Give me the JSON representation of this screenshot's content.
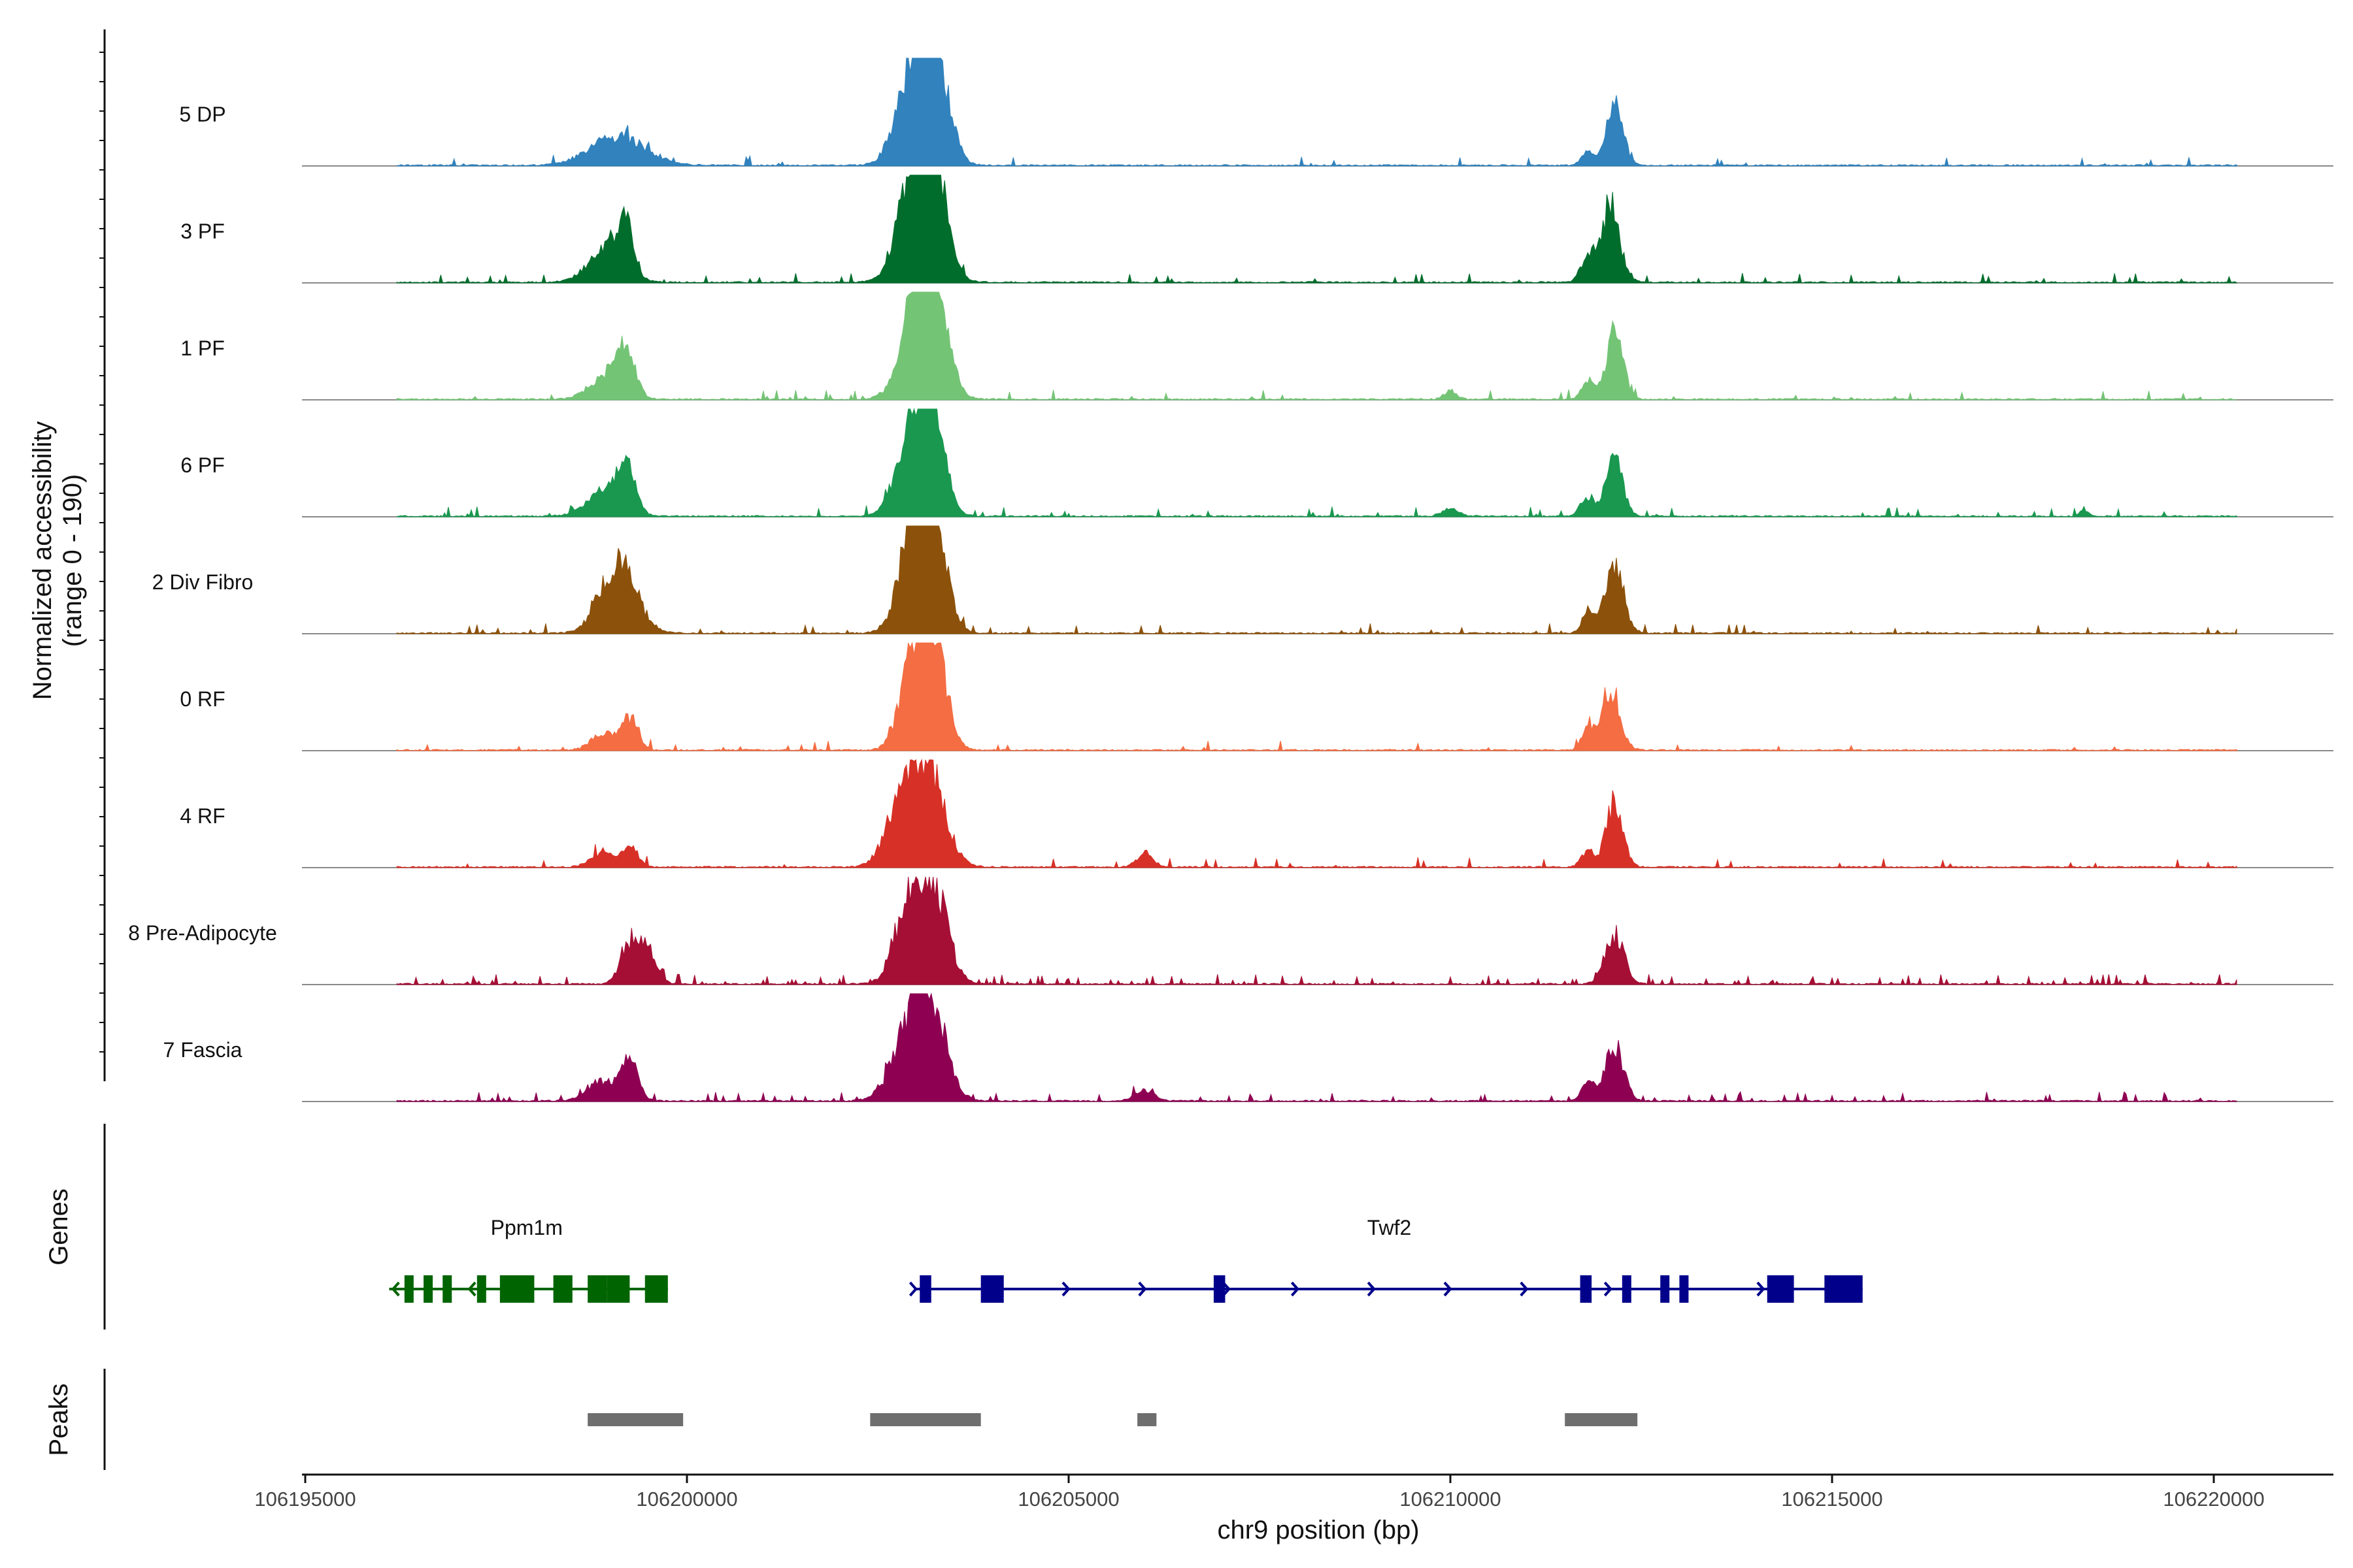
{
  "chart_data": {
    "type": "area",
    "title": "",
    "ylabel": "Normalized accessibility",
    "ylabel_range": "(range 0 - 190)",
    "ylim": [
      0,
      190
    ],
    "xlabel": "chr9 position (bp)",
    "xlim": [
      106195000,
      106221500
    ],
    "xticks": [
      106195000,
      106200000,
      106205000,
      106210000,
      106215000,
      106220000
    ],
    "xtick_labels": [
      "106195000",
      "106200000",
      "106205000",
      "106210000",
      "106215000",
      "106220000"
    ],
    "signal_range": [
      106196200,
      106220300
    ],
    "tracks": [
      {
        "name": "5 DP",
        "color": "#3182bd",
        "peaks": [
          [
            106199100,
            55,
            350
          ],
          [
            106203000,
            180,
            220
          ],
          [
            106203250,
            150,
            180
          ],
          [
            106212150,
            110,
            110
          ],
          [
            106211800,
            25,
            80
          ]
        ],
        "noise": 0.03
      },
      {
        "name": "3 PF",
        "color": "#006d2c",
        "peaks": [
          [
            106198950,
            60,
            230
          ],
          [
            106199200,
            85,
            90
          ],
          [
            106203000,
            180,
            220
          ],
          [
            106203200,
            165,
            190
          ],
          [
            106212100,
            135,
            120
          ],
          [
            106211800,
            45,
            90
          ]
        ],
        "noise": 0.04
      },
      {
        "name": "1 PF",
        "color": "#74c476",
        "peaks": [
          [
            106198950,
            40,
            220
          ],
          [
            106199200,
            75,
            120
          ],
          [
            106203000,
            160,
            200
          ],
          [
            106203250,
            150,
            180
          ],
          [
            106212150,
            120,
            110
          ],
          [
            106211800,
            35,
            80
          ],
          [
            106210000,
            15,
            80
          ]
        ],
        "noise": 0.04
      },
      {
        "name": "6 PF",
        "color": "#1a9850",
        "peaks": [
          [
            106198900,
            45,
            220
          ],
          [
            106199200,
            82,
            120
          ],
          [
            106203000,
            155,
            220
          ],
          [
            106203200,
            145,
            160
          ],
          [
            106212150,
            100,
            110
          ],
          [
            106211800,
            35,
            90
          ],
          [
            106210000,
            15,
            100
          ],
          [
            106218300,
            10,
            60
          ]
        ],
        "noise": 0.05
      },
      {
        "name": "2 Div Fibro",
        "color": "#8c510a",
        "peaks": [
          [
            106199100,
            125,
            230
          ],
          [
            106203000,
            180,
            200
          ],
          [
            106203200,
            185,
            180
          ],
          [
            106212150,
            120,
            120
          ],
          [
            106211800,
            35,
            80
          ]
        ],
        "noise": 0.05
      },
      {
        "name": "0 RF",
        "color": "#f46d43",
        "peaks": [
          [
            106198900,
            30,
            150
          ],
          [
            106199250,
            55,
            110
          ],
          [
            106203000,
            175,
            180
          ],
          [
            106203250,
            155,
            160
          ],
          [
            106212100,
            110,
            120
          ],
          [
            106211800,
            35,
            80
          ]
        ],
        "noise": 0.03
      },
      {
        "name": "4 RF",
        "color": "#d73027",
        "peaks": [
          [
            106198900,
            25,
            150
          ],
          [
            106199250,
            35,
            110
          ],
          [
            106202800,
            100,
            200
          ],
          [
            106203150,
            170,
            220
          ],
          [
            106206000,
            25,
            100
          ],
          [
            106212150,
            115,
            110
          ],
          [
            106211800,
            30,
            80
          ]
        ],
        "noise": 0.03
      },
      {
        "name": "8 Pre-Adipocyte",
        "color": "#a50f35",
        "peaks": [
          [
            106199250,
            75,
            120
          ],
          [
            106199500,
            60,
            110
          ],
          [
            106202900,
            140,
            180
          ],
          [
            106203250,
            150,
            180
          ],
          [
            106212150,
            90,
            120
          ]
        ],
        "noise": 0.12
      },
      {
        "name": "7 Fascia",
        "color": "#8e0152",
        "peaks": [
          [
            106198900,
            35,
            200
          ],
          [
            106199250,
            65,
            110
          ],
          [
            106202900,
            110,
            220
          ],
          [
            106203200,
            160,
            200
          ],
          [
            106206000,
            20,
            120
          ],
          [
            106212150,
            95,
            120
          ],
          [
            106211800,
            30,
            80
          ]
        ],
        "noise": 0.07
      }
    ],
    "genes_label": "Genes",
    "genes": [
      {
        "name": "Ppm1m",
        "label_pos": 106197900,
        "strand": "-",
        "color": "#006400",
        "start": 106196100,
        "end": 106199750,
        "exons": [
          [
            106196300,
            106196350
          ],
          [
            106196550,
            106196650
          ],
          [
            106196800,
            106196850
          ],
          [
            106197250,
            106197350
          ],
          [
            106197550,
            106198000
          ],
          [
            106198250,
            106198500
          ],
          [
            106198700,
            106198950
          ],
          [
            106198950,
            106199250
          ],
          [
            106199450,
            106199750
          ]
        ],
        "arrows": [
          106196150,
          106197150
        ]
      },
      {
        "name": "Twf2",
        "label_pos": 106209200,
        "strand": "+",
        "color": "#00008b",
        "start": 106203000,
        "end": 106215400,
        "exons": [
          [
            106203050,
            106203200
          ],
          [
            106203850,
            106204150
          ],
          [
            106206900,
            106207050
          ],
          [
            106211700,
            106211850
          ],
          [
            106212250,
            106212350
          ],
          [
            106212750,
            106212850
          ],
          [
            106213000,
            106213100
          ],
          [
            106214150,
            106214500
          ],
          [
            106214900,
            106215400
          ]
        ],
        "arrows": [
          106203000,
          106205000,
          106206000,
          106207100,
          106208000,
          106209000,
          106210000,
          106211000,
          106212100,
          106213100,
          106214100
        ]
      }
    ],
    "peaks_label": "Peaks",
    "peak_regions": [
      [
        106198700,
        106199950
      ],
      [
        106202400,
        106203850
      ],
      [
        106205900,
        106206150
      ],
      [
        106211500,
        106212450
      ]
    ],
    "peak_color": "#6e6e6e"
  }
}
